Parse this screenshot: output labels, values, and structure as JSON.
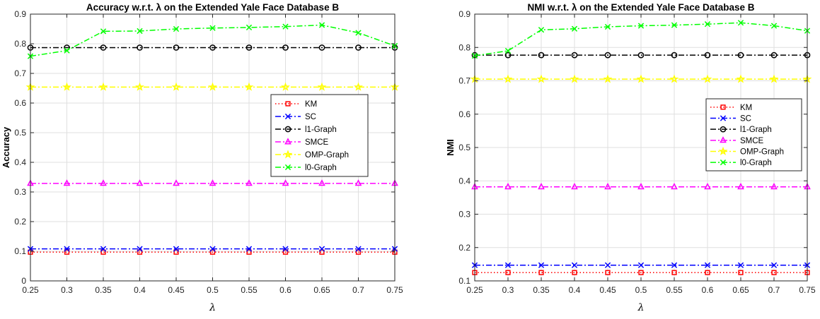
{
  "chart_data": [
    {
      "type": "line",
      "title": "Accuracy w.r.t. λ on the Extended Yale Face Database B",
      "xlabel": "λ",
      "ylabel": "Accuracy",
      "x": [
        0.25,
        0.3,
        0.35,
        0.4,
        0.45,
        0.5,
        0.55,
        0.6,
        0.65,
        0.7,
        0.75
      ],
      "xlim": [
        0.25,
        0.75
      ],
      "ylim": [
        0,
        0.9
      ],
      "xticks": [
        "0.25",
        "0.3",
        "0.35",
        "0.4",
        "0.45",
        "0.5",
        "0.55",
        "0.6",
        "0.65",
        "0.7",
        "0.75"
      ],
      "yticks": [
        "0",
        "0.1",
        "0.2",
        "0.3",
        "0.4",
        "0.5",
        "0.6",
        "0.7",
        "0.8",
        "0.9"
      ],
      "grid": true,
      "legend_position": "right",
      "series": [
        {
          "name": "KM",
          "color": "#ff0000",
          "marker": "square",
          "dash": "dot",
          "values": [
            0.097,
            0.097,
            0.097,
            0.097,
            0.097,
            0.097,
            0.097,
            0.097,
            0.097,
            0.097,
            0.097
          ]
        },
        {
          "name": "SC",
          "color": "#0000ff",
          "marker": "x",
          "dash": "dashdot",
          "values": [
            0.108,
            0.108,
            0.108,
            0.108,
            0.108,
            0.108,
            0.108,
            0.108,
            0.108,
            0.108,
            0.108
          ]
        },
        {
          "name": "l1-Graph",
          "color": "#000000",
          "marker": "circle",
          "dash": "dashdot",
          "values": [
            0.787,
            0.787,
            0.787,
            0.787,
            0.787,
            0.787,
            0.787,
            0.787,
            0.787,
            0.787,
            0.787
          ]
        },
        {
          "name": "SMCE",
          "color": "#ff00ff",
          "marker": "triangle",
          "dash": "dashdot",
          "values": [
            0.329,
            0.329,
            0.329,
            0.329,
            0.329,
            0.329,
            0.329,
            0.329,
            0.329,
            0.329,
            0.329
          ]
        },
        {
          "name": "OMP-Graph",
          "color": "#ffff00",
          "marker": "star",
          "dash": "dashdot",
          "values": [
            0.654,
            0.654,
            0.654,
            0.654,
            0.654,
            0.654,
            0.654,
            0.654,
            0.654,
            0.654,
            0.654
          ]
        },
        {
          "name": "l0-Graph",
          "color": "#00ff00",
          "marker": "x",
          "dash": "dashdot",
          "values": [
            0.758,
            0.777,
            0.842,
            0.843,
            0.85,
            0.853,
            0.855,
            0.858,
            0.863,
            0.837,
            0.793
          ]
        }
      ]
    },
    {
      "type": "line",
      "title": "NMI w.r.t. λ on the Extended Yale Face Database B",
      "xlabel": "λ",
      "ylabel": "NMI",
      "x": [
        0.25,
        0.3,
        0.35,
        0.4,
        0.45,
        0.5,
        0.55,
        0.6,
        0.65,
        0.7,
        0.75
      ],
      "xlim": [
        0.25,
        0.75
      ],
      "ylim": [
        0.1,
        0.9
      ],
      "xticks": [
        "0.25",
        "0.3",
        "0.35",
        "0.4",
        "0.45",
        "0.5",
        "0.55",
        "0.6",
        "0.65",
        "0.7",
        "0.75"
      ],
      "yticks": [
        "0.1",
        "0.2",
        "0.3",
        "0.4",
        "0.5",
        "0.6",
        "0.7",
        "0.8",
        "0.9"
      ],
      "grid": true,
      "legend_position": "right",
      "series": [
        {
          "name": "KM",
          "color": "#ff0000",
          "marker": "square",
          "dash": "dot",
          "values": [
            0.125,
            0.125,
            0.125,
            0.125,
            0.125,
            0.125,
            0.125,
            0.125,
            0.125,
            0.125,
            0.125
          ]
        },
        {
          "name": "SC",
          "color": "#0000ff",
          "marker": "x",
          "dash": "dashdot",
          "values": [
            0.147,
            0.147,
            0.147,
            0.147,
            0.147,
            0.147,
            0.147,
            0.147,
            0.147,
            0.147,
            0.147
          ]
        },
        {
          "name": "l1-Graph",
          "color": "#000000",
          "marker": "circle",
          "dash": "dashdot",
          "values": [
            0.777,
            0.777,
            0.777,
            0.777,
            0.777,
            0.777,
            0.777,
            0.777,
            0.777,
            0.777,
            0.777
          ]
        },
        {
          "name": "SMCE",
          "color": "#ff00ff",
          "marker": "triangle",
          "dash": "dashdot",
          "values": [
            0.382,
            0.382,
            0.382,
            0.382,
            0.382,
            0.382,
            0.382,
            0.382,
            0.382,
            0.382,
            0.382
          ]
        },
        {
          "name": "OMP-Graph",
          "color": "#ffff00",
          "marker": "star",
          "dash": "dashdot",
          "values": [
            0.705,
            0.705,
            0.705,
            0.705,
            0.705,
            0.705,
            0.705,
            0.705,
            0.705,
            0.705,
            0.705
          ]
        },
        {
          "name": "l0-Graph",
          "color": "#00ff00",
          "marker": "x",
          "dash": "dashdot",
          "values": [
            0.775,
            0.79,
            0.853,
            0.856,
            0.862,
            0.865,
            0.867,
            0.87,
            0.874,
            0.865,
            0.85
          ]
        }
      ]
    }
  ]
}
